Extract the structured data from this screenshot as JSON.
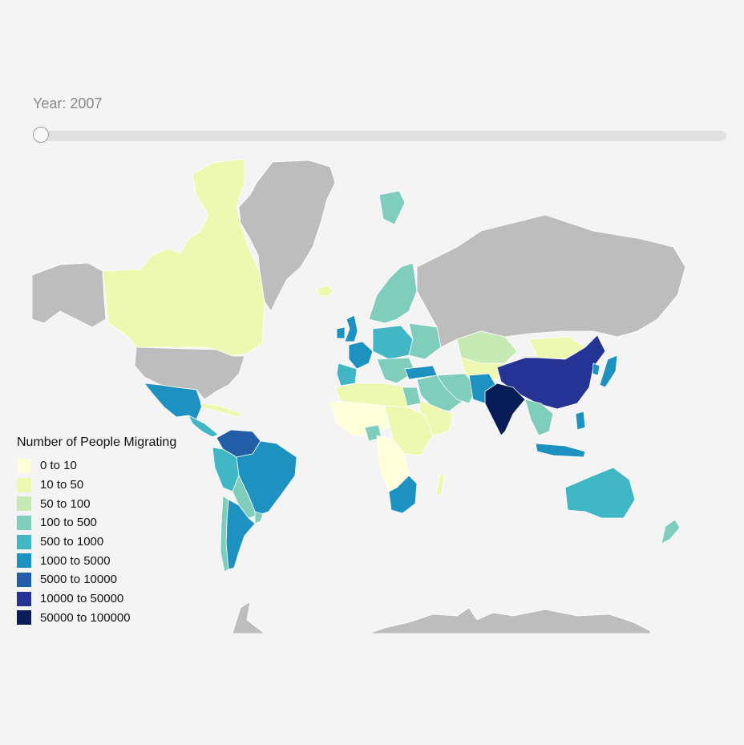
{
  "year": {
    "label": "Year: 2007",
    "value": 2007
  },
  "slider": {
    "position_fraction": 0.0
  },
  "legend": {
    "title": "Number of People Migrating",
    "items": [
      {
        "label": "0 to 10",
        "color": "#ffffd9"
      },
      {
        "label": "10 to 50",
        "color": "#edf8b1"
      },
      {
        "label": "50 to 100",
        "color": "#c7e9b4"
      },
      {
        "label": "100 to 500",
        "color": "#7fcdbb"
      },
      {
        "label": "500 to 1000",
        "color": "#41b6c4"
      },
      {
        "label": "1000 to 5000",
        "color": "#1d91c0"
      },
      {
        "label": "5000 to 10000",
        "color": "#225ea8"
      },
      {
        "label": "10000 to 50000",
        "color": "#253494"
      },
      {
        "label": "50000 to 100000",
        "color": "#081d58"
      }
    ]
  },
  "colors": {
    "no_data": "#bdbdbd",
    "background": "#f4f4f4"
  }
}
